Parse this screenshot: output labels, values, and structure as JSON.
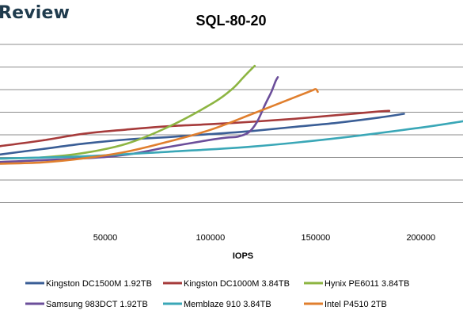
{
  "brand": "Review",
  "chart_data": {
    "type": "line",
    "title": "SQL-80-20",
    "xlabel": "IOPS",
    "ylabel": "",
    "xlim": [
      0,
      220000
    ],
    "ylim": [
      0,
      8
    ],
    "x_ticks": [
      50000,
      100000,
      150000,
      200000
    ],
    "x_tick_labels": [
      "50000",
      "100000",
      "150000",
      "200000"
    ],
    "grid": true,
    "legend_position": "bottom",
    "series": [
      {
        "name": "Kingston DC1500M 1.92TB",
        "color": "#3a5e96",
        "points": [
          [
            0,
            3.13
          ],
          [
            20000,
            3.37
          ],
          [
            40000,
            3.61
          ],
          [
            60000,
            3.79
          ],
          [
            80000,
            3.9
          ],
          [
            100000,
            4.03
          ],
          [
            120000,
            4.17
          ],
          [
            140000,
            4.35
          ],
          [
            160000,
            4.53
          ],
          [
            180000,
            4.76
          ],
          [
            192000,
            4.93
          ]
        ]
      },
      {
        "name": "Kingston DC1000M 3.84TB",
        "color": "#a63b3b",
        "points": [
          [
            0,
            3.5
          ],
          [
            20000,
            3.75
          ],
          [
            40000,
            4.05
          ],
          [
            60000,
            4.23
          ],
          [
            80000,
            4.38
          ],
          [
            100000,
            4.47
          ],
          [
            120000,
            4.58
          ],
          [
            140000,
            4.71
          ],
          [
            160000,
            4.87
          ],
          [
            180000,
            5.03
          ],
          [
            185000,
            5.06
          ]
        ]
      },
      {
        "name": "Hynix PE6011 3.84TB",
        "color": "#8db542",
        "points": [
          [
            0,
            2.95
          ],
          [
            20000,
            3.0
          ],
          [
            40000,
            3.2
          ],
          [
            60000,
            3.6
          ],
          [
            80000,
            4.35
          ],
          [
            100000,
            5.34
          ],
          [
            110000,
            6.0
          ],
          [
            116000,
            6.58
          ],
          [
            121000,
            7.05
          ]
        ]
      },
      {
        "name": "Samsung 983DCT 1.92TB",
        "color": "#6b4e9a",
        "points": [
          [
            0,
            2.8
          ],
          [
            40000,
            2.96
          ],
          [
            60000,
            3.12
          ],
          [
            80000,
            3.46
          ],
          [
            100000,
            3.78
          ],
          [
            108000,
            3.88
          ],
          [
            113000,
            3.92
          ],
          [
            118000,
            4.1
          ],
          [
            122000,
            4.55
          ],
          [
            126000,
            5.34
          ],
          [
            129000,
            5.91
          ],
          [
            131000,
            6.38
          ],
          [
            132000,
            6.55
          ]
        ]
      },
      {
        "name": "Memblaze 910 3.84TB",
        "color": "#3aa7b7",
        "points": [
          [
            0,
            2.95
          ],
          [
            40000,
            3.05
          ],
          [
            80000,
            3.25
          ],
          [
            120000,
            3.48
          ],
          [
            160000,
            3.85
          ],
          [
            200000,
            4.32
          ],
          [
            220000,
            4.6
          ]
        ]
      },
      {
        "name": "Intel P4510 2TB",
        "color": "#e07f2e",
        "points": [
          [
            0,
            2.72
          ],
          [
            20000,
            2.78
          ],
          [
            40000,
            2.96
          ],
          [
            60000,
            3.25
          ],
          [
            80000,
            3.7
          ],
          [
            100000,
            4.22
          ],
          [
            120000,
            4.93
          ],
          [
            140000,
            5.66
          ],
          [
            148000,
            5.95
          ],
          [
            150000,
            6.02
          ],
          [
            151000,
            5.9
          ]
        ]
      }
    ]
  }
}
